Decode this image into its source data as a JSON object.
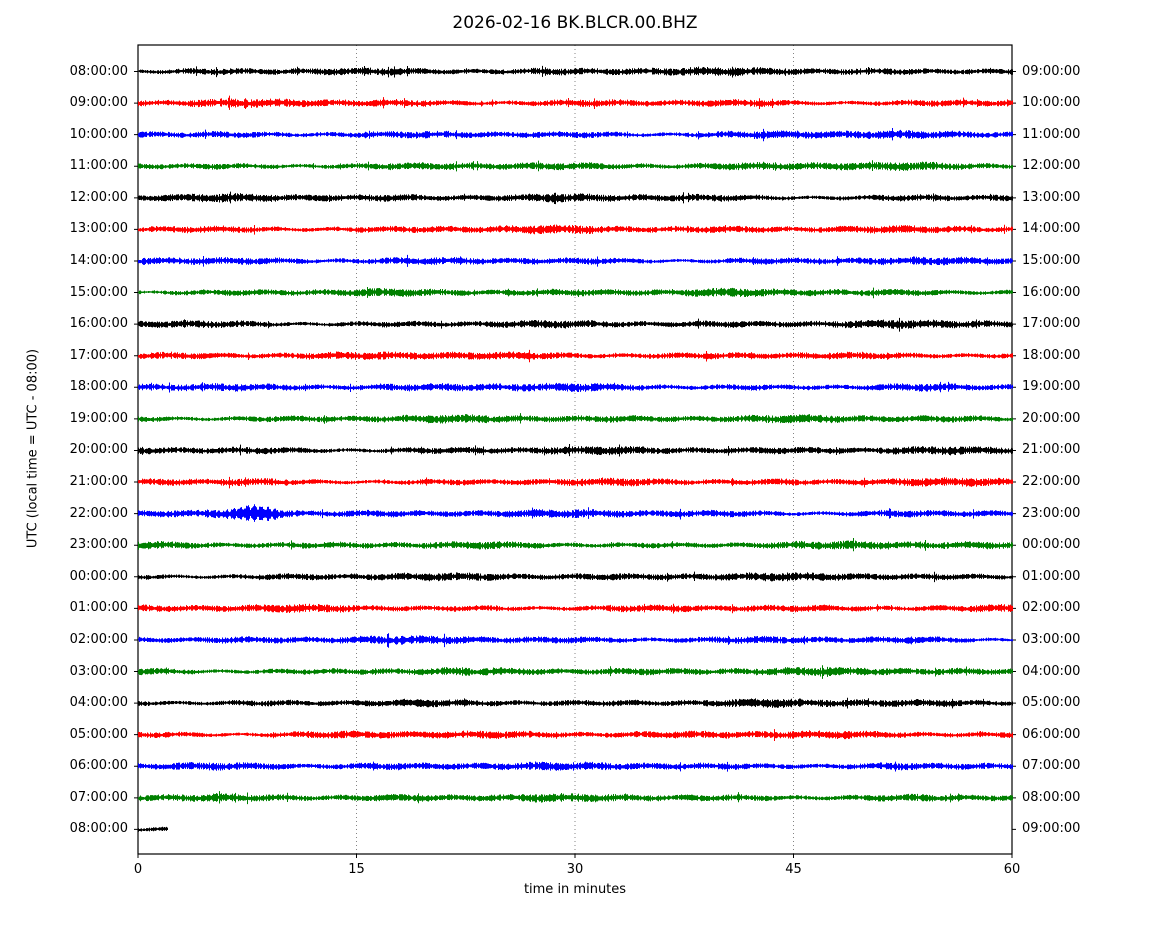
{
  "chart_data": {
    "type": "line",
    "subtype": "seismogram-dayplot",
    "title": "2026-02-16 BK.BLCR.00.BHZ",
    "station_id": "BK.BLCR.00.BHZ",
    "date": "2026-02-16",
    "xlabel": "time in minutes",
    "ylabel": "UTC (local time = UTC - 08:00)",
    "xlim": [
      0,
      60
    ],
    "x_ticks": [
      0,
      15,
      30,
      45,
      60
    ],
    "grid": {
      "vertical_dotted_at_minutes": [
        15,
        30,
        45
      ]
    },
    "legend_position": "none",
    "trace_colors_cycle": [
      "#000000",
      "#ff0000",
      "#0000ff",
      "#008000"
    ],
    "rows_are": "one hour of continuous seismic noise per line, amplitude-normalized",
    "rows": [
      {
        "utc_start": "08:00:00",
        "utc_end": "09:00:00",
        "color": "#000000",
        "duration_minutes": 60
      },
      {
        "utc_start": "09:00:00",
        "utc_end": "10:00:00",
        "color": "#ff0000",
        "duration_minutes": 60
      },
      {
        "utc_start": "10:00:00",
        "utc_end": "11:00:00",
        "color": "#0000ff",
        "duration_minutes": 60
      },
      {
        "utc_start": "11:00:00",
        "utc_end": "12:00:00",
        "color": "#008000",
        "duration_minutes": 60
      },
      {
        "utc_start": "12:00:00",
        "utc_end": "13:00:00",
        "color": "#000000",
        "duration_minutes": 60
      },
      {
        "utc_start": "13:00:00",
        "utc_end": "14:00:00",
        "color": "#ff0000",
        "duration_minutes": 60
      },
      {
        "utc_start": "14:00:00",
        "utc_end": "15:00:00",
        "color": "#0000ff",
        "duration_minutes": 60
      },
      {
        "utc_start": "15:00:00",
        "utc_end": "16:00:00",
        "color": "#008000",
        "duration_minutes": 60
      },
      {
        "utc_start": "16:00:00",
        "utc_end": "17:00:00",
        "color": "#000000",
        "duration_minutes": 60
      },
      {
        "utc_start": "17:00:00",
        "utc_end": "18:00:00",
        "color": "#ff0000",
        "duration_minutes": 60
      },
      {
        "utc_start": "18:00:00",
        "utc_end": "19:00:00",
        "color": "#0000ff",
        "duration_minutes": 60
      },
      {
        "utc_start": "19:00:00",
        "utc_end": "20:00:00",
        "color": "#008000",
        "duration_minutes": 60
      },
      {
        "utc_start": "20:00:00",
        "utc_end": "21:00:00",
        "color": "#000000",
        "duration_minutes": 60
      },
      {
        "utc_start": "21:00:00",
        "utc_end": "22:00:00",
        "color": "#ff0000",
        "duration_minutes": 60
      },
      {
        "utc_start": "22:00:00",
        "utc_end": "23:00:00",
        "color": "#0000ff",
        "duration_minutes": 60,
        "event": {
          "minute": 8,
          "description": "small oscillatory wiggle burst"
        }
      },
      {
        "utc_start": "23:00:00",
        "utc_end": "00:00:00",
        "color": "#008000",
        "duration_minutes": 60
      },
      {
        "utc_start": "00:00:00",
        "utc_end": "01:00:00",
        "color": "#000000",
        "duration_minutes": 60
      },
      {
        "utc_start": "01:00:00",
        "utc_end": "02:00:00",
        "color": "#ff0000",
        "duration_minutes": 60
      },
      {
        "utc_start": "02:00:00",
        "utc_end": "03:00:00",
        "color": "#0000ff",
        "duration_minutes": 60
      },
      {
        "utc_start": "03:00:00",
        "utc_end": "04:00:00",
        "color": "#008000",
        "duration_minutes": 60
      },
      {
        "utc_start": "04:00:00",
        "utc_end": "05:00:00",
        "color": "#000000",
        "duration_minutes": 60
      },
      {
        "utc_start": "05:00:00",
        "utc_end": "06:00:00",
        "color": "#ff0000",
        "duration_minutes": 60
      },
      {
        "utc_start": "06:00:00",
        "utc_end": "07:00:00",
        "color": "#0000ff",
        "duration_minutes": 60
      },
      {
        "utc_start": "07:00:00",
        "utc_end": "08:00:00",
        "color": "#008000",
        "duration_minutes": 60
      },
      {
        "utc_start": "08:00:00",
        "utc_end": "09:00:00",
        "color": "#000000",
        "duration_minutes": 2
      }
    ]
  }
}
